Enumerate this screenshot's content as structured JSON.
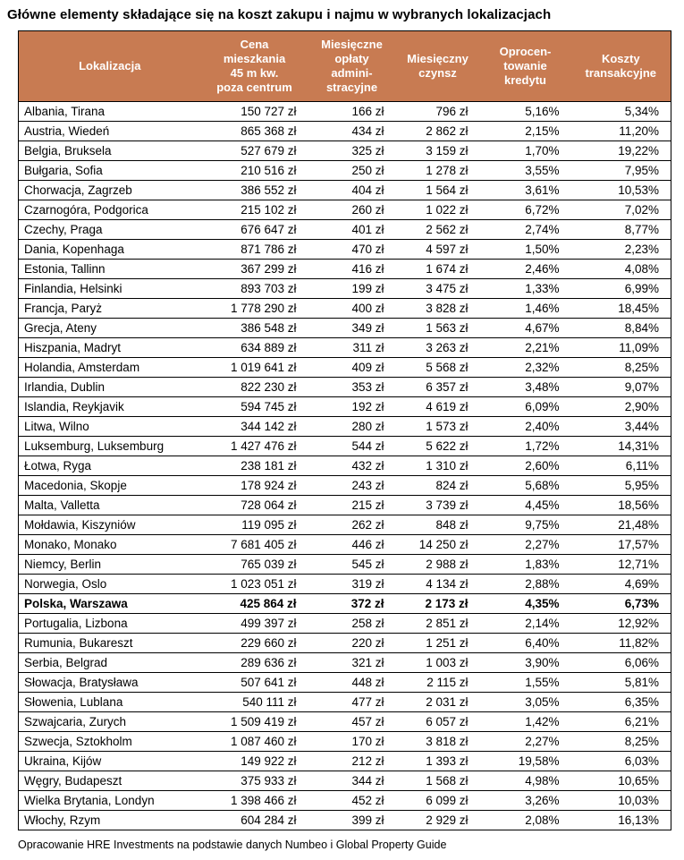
{
  "title": "Główne elementy składające się na koszt zakupu i najmu w wybranych lokalizacjach",
  "source_note": "Opracowanie HRE Investments na podstawie danych Numbeo i Global Property Guide",
  "colors": {
    "header_bg": "#C87B52",
    "header_text": "#FFFFFF",
    "border": "#000000"
  },
  "chart_data": {
    "type": "table",
    "title": "Główne elementy składające się na koszt zakupu i najmu w wybranych lokalizacjach",
    "columns": [
      "Lokalizacja",
      "Cena\nmieszkania\n45 m kw.\npoza centrum",
      "Miesięczne\nopłaty\nadmini-\nstracyjne",
      "Miesięczny\nczynsz",
      "Oprocen-\ntowanie\nkredytu",
      "Koszty\ntransakcyjne"
    ],
    "bold_row_index": 25,
    "rows": [
      [
        "Albania, Tirana",
        "150 727 zł",
        "166 zł",
        "796 zł",
        "5,16%",
        "5,34%"
      ],
      [
        "Austria, Wiedeń",
        "865 368 zł",
        "434 zł",
        "2 862 zł",
        "2,15%",
        "11,20%"
      ],
      [
        "Belgia, Bruksela",
        "527 679 zł",
        "325 zł",
        "3 159 zł",
        "1,70%",
        "19,22%"
      ],
      [
        "Bułgaria, Sofia",
        "210 516 zł",
        "250 zł",
        "1 278 zł",
        "3,55%",
        "7,95%"
      ],
      [
        "Chorwacja, Zagrzeb",
        "386 552 zł",
        "404 zł",
        "1 564 zł",
        "3,61%",
        "10,53%"
      ],
      [
        "Czarnogóra, Podgorica",
        "215 102 zł",
        "260 zł",
        "1 022 zł",
        "6,72%",
        "7,02%"
      ],
      [
        "Czechy, Praga",
        "676 647 zł",
        "401 zł",
        "2 562 zł",
        "2,74%",
        "8,77%"
      ],
      [
        "Dania, Kopenhaga",
        "871 786 zł",
        "470 zł",
        "4 597 zł",
        "1,50%",
        "2,23%"
      ],
      [
        "Estonia, Tallinn",
        "367 299 zł",
        "416 zł",
        "1 674 zł",
        "2,46%",
        "4,08%"
      ],
      [
        "Finlandia, Helsinki",
        "893 703 zł",
        "199 zł",
        "3 475 zł",
        "1,33%",
        "6,99%"
      ],
      [
        "Francja, Paryż",
        "1 778 290 zł",
        "400 zł",
        "3 828 zł",
        "1,46%",
        "18,45%"
      ],
      [
        "Grecja, Ateny",
        "386 548 zł",
        "349 zł",
        "1 563 zł",
        "4,67%",
        "8,84%"
      ],
      [
        "Hiszpania, Madryt",
        "634 889 zł",
        "311 zł",
        "3 263 zł",
        "2,21%",
        "11,09%"
      ],
      [
        "Holandia, Amsterdam",
        "1 019 641 zł",
        "409 zł",
        "5 568 zł",
        "2,32%",
        "8,25%"
      ],
      [
        "Irlandia, Dublin",
        "822 230 zł",
        "353 zł",
        "6 357 zł",
        "3,48%",
        "9,07%"
      ],
      [
        "Islandia, Reykjavik",
        "594 745 zł",
        "192 zł",
        "4 619 zł",
        "6,09%",
        "2,90%"
      ],
      [
        "Litwa, Wilno",
        "344 142 zł",
        "280 zł",
        "1 573 zł",
        "2,40%",
        "3,44%"
      ],
      [
        "Luksemburg, Luksemburg",
        "1 427 476 zł",
        "544 zł",
        "5 622 zł",
        "1,72%",
        "14,31%"
      ],
      [
        "Łotwa, Ryga",
        "238 181 zł",
        "432 zł",
        "1 310 zł",
        "2,60%",
        "6,11%"
      ],
      [
        "Macedonia, Skopje",
        "178 924 zł",
        "243 zł",
        "824 zł",
        "5,68%",
        "5,95%"
      ],
      [
        "Malta, Valletta",
        "728 064 zł",
        "215 zł",
        "3 739 zł",
        "4,45%",
        "18,56%"
      ],
      [
        "Mołdawia, Kiszyniów",
        "119 095 zł",
        "262 zł",
        "848 zł",
        "9,75%",
        "21,48%"
      ],
      [
        "Monako, Monako",
        "7 681 405 zł",
        "446 zł",
        "14 250 zł",
        "2,27%",
        "17,57%"
      ],
      [
        "Niemcy, Berlin",
        "765 039 zł",
        "545 zł",
        "2 988 zł",
        "1,83%",
        "12,71%"
      ],
      [
        "Norwegia, Oslo",
        "1 023 051 zł",
        "319 zł",
        "4 134 zł",
        "2,88%",
        "4,69%"
      ],
      [
        "Polska, Warszawa",
        "425 864 zł",
        "372 zł",
        "2 173 zł",
        "4,35%",
        "6,73%"
      ],
      [
        "Portugalia, Lizbona",
        "499 397 zł",
        "258 zł",
        "2 851 zł",
        "2,14%",
        "12,92%"
      ],
      [
        "Rumunia, Bukareszt",
        "229 660 zł",
        "220 zł",
        "1 251 zł",
        "6,40%",
        "11,82%"
      ],
      [
        "Serbia, Belgrad",
        "289 636 zł",
        "321 zł",
        "1 003 zł",
        "3,90%",
        "6,06%"
      ],
      [
        "Słowacja, Bratysława",
        "507 641 zł",
        "448 zł",
        "2 115 zł",
        "1,55%",
        "5,81%"
      ],
      [
        "Słowenia, Lublana",
        "540 111 zł",
        "477 zł",
        "2 031 zł",
        "3,05%",
        "6,35%"
      ],
      [
        "Szwajcaria, Zurych",
        "1 509 419 zł",
        "457 zł",
        "6 057 zł",
        "1,42%",
        "6,21%"
      ],
      [
        "Szwecja, Sztokholm",
        "1 087 460 zł",
        "170 zł",
        "3 818 zł",
        "2,27%",
        "8,25%"
      ],
      [
        "Ukraina, Kijów",
        "149 922 zł",
        "212 zł",
        "1 393 zł",
        "19,58%",
        "6,03%"
      ],
      [
        "Węgry, Budapeszt",
        "375 933 zł",
        "344 zł",
        "1 568 zł",
        "4,98%",
        "10,65%"
      ],
      [
        "Wielka Brytania, Londyn",
        "1 398 466 zł",
        "452 zł",
        "6 099 zł",
        "3,26%",
        "10,03%"
      ],
      [
        "Włochy, Rzym",
        "604 284 zł",
        "399 zł",
        "2 929 zł",
        "2,08%",
        "16,13%"
      ]
    ]
  }
}
